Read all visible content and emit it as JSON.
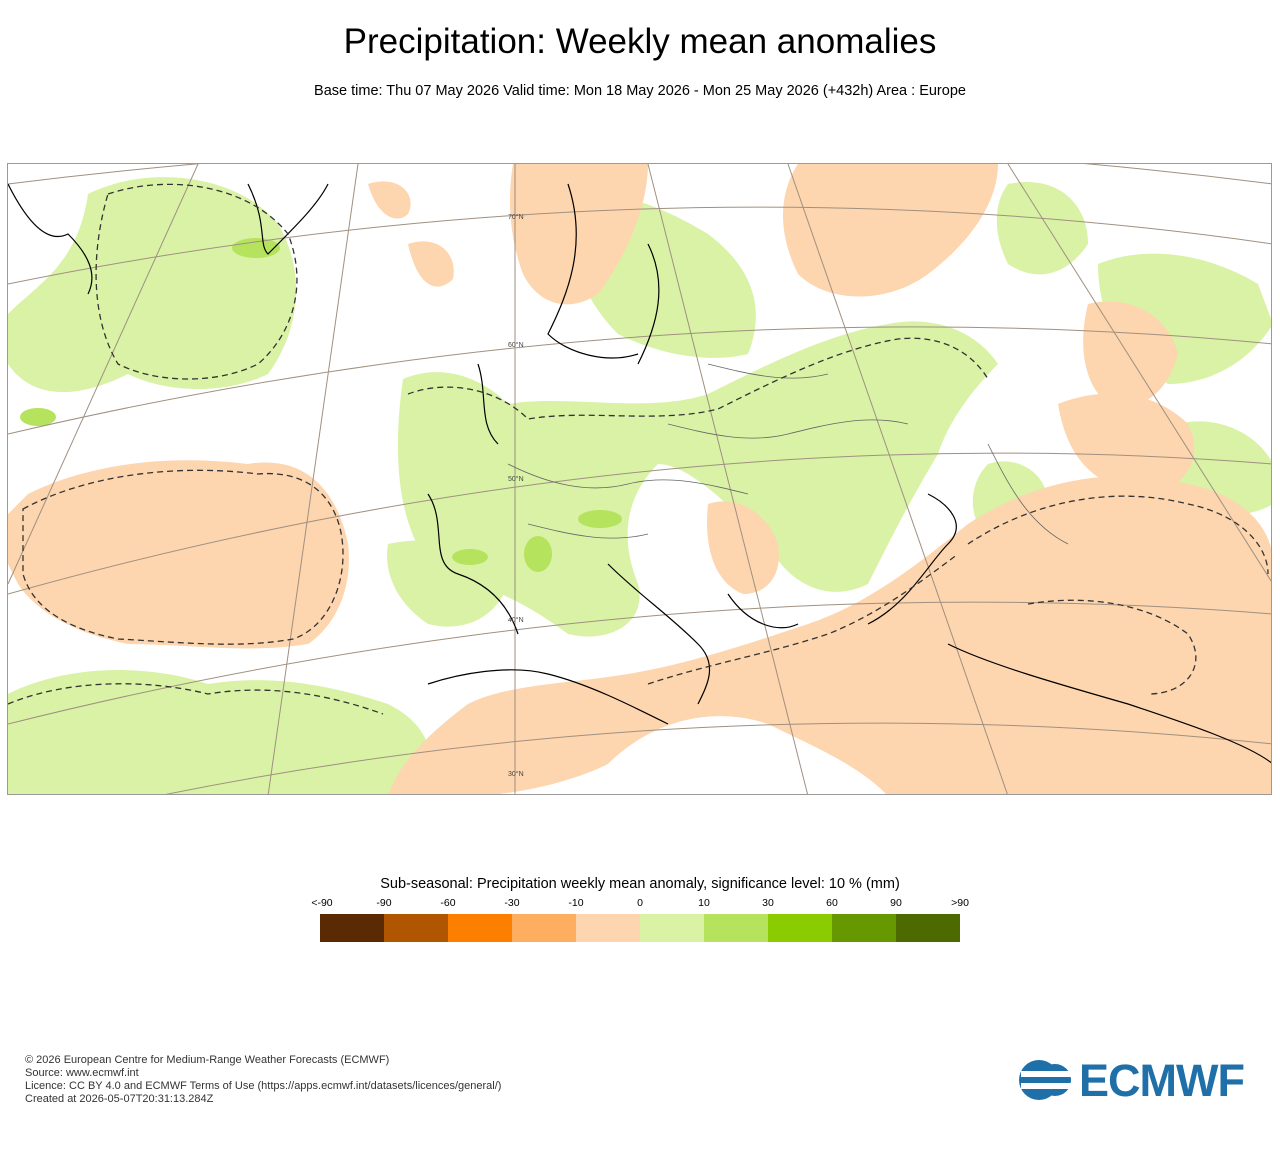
{
  "title": "Precipitation: Weekly mean anomalies",
  "subtitle": "Base time: Thu 07 May 2026 Valid time: Mon 18 May 2026 - Mon 25 May 2026 (+432h) Area : Europe",
  "map": {
    "area": "Europe",
    "lat_labels": [
      "70°N",
      "60°N",
      "50°N",
      "40°N",
      "30°N"
    ],
    "colors": {
      "ocean_land_bg": "#ffffff",
      "dry_light": "#fdd5ae",
      "wet_light": "#d9f2a6",
      "wet_medium": "#b5e35e",
      "graticule": "#a09080",
      "coastline": "#000000",
      "border": "#666666"
    }
  },
  "legend": {
    "title": "Sub-seasonal: Precipitation weekly mean anomaly, significance level: 10 % (mm)",
    "ticks": [
      "<-90",
      "-90",
      "-60",
      "-30",
      "-10",
      "0",
      "10",
      "30",
      "60",
      "90",
      ">90"
    ],
    "colors": [
      "#5a2a04",
      "#b05500",
      "#fd7f00",
      "#fdae61",
      "#fdd5ae",
      "#d9f2a6",
      "#b5e35e",
      "#8acc00",
      "#669900",
      "#4d6a00"
    ]
  },
  "footer": {
    "copyright": "© 2026 European Centre for Medium-Range Weather Forecasts (ECMWF)",
    "source": "Source: www.ecmwf.int",
    "licence": "Licence: CC BY 4.0 and ECMWF Terms of Use (https://apps.ecmwf.int/datasets/licences/general/)",
    "created": "Created at 2026-05-07T20:31:13.284Z"
  },
  "logo": {
    "text": "ECMWF",
    "color": "#1f6fa8"
  }
}
